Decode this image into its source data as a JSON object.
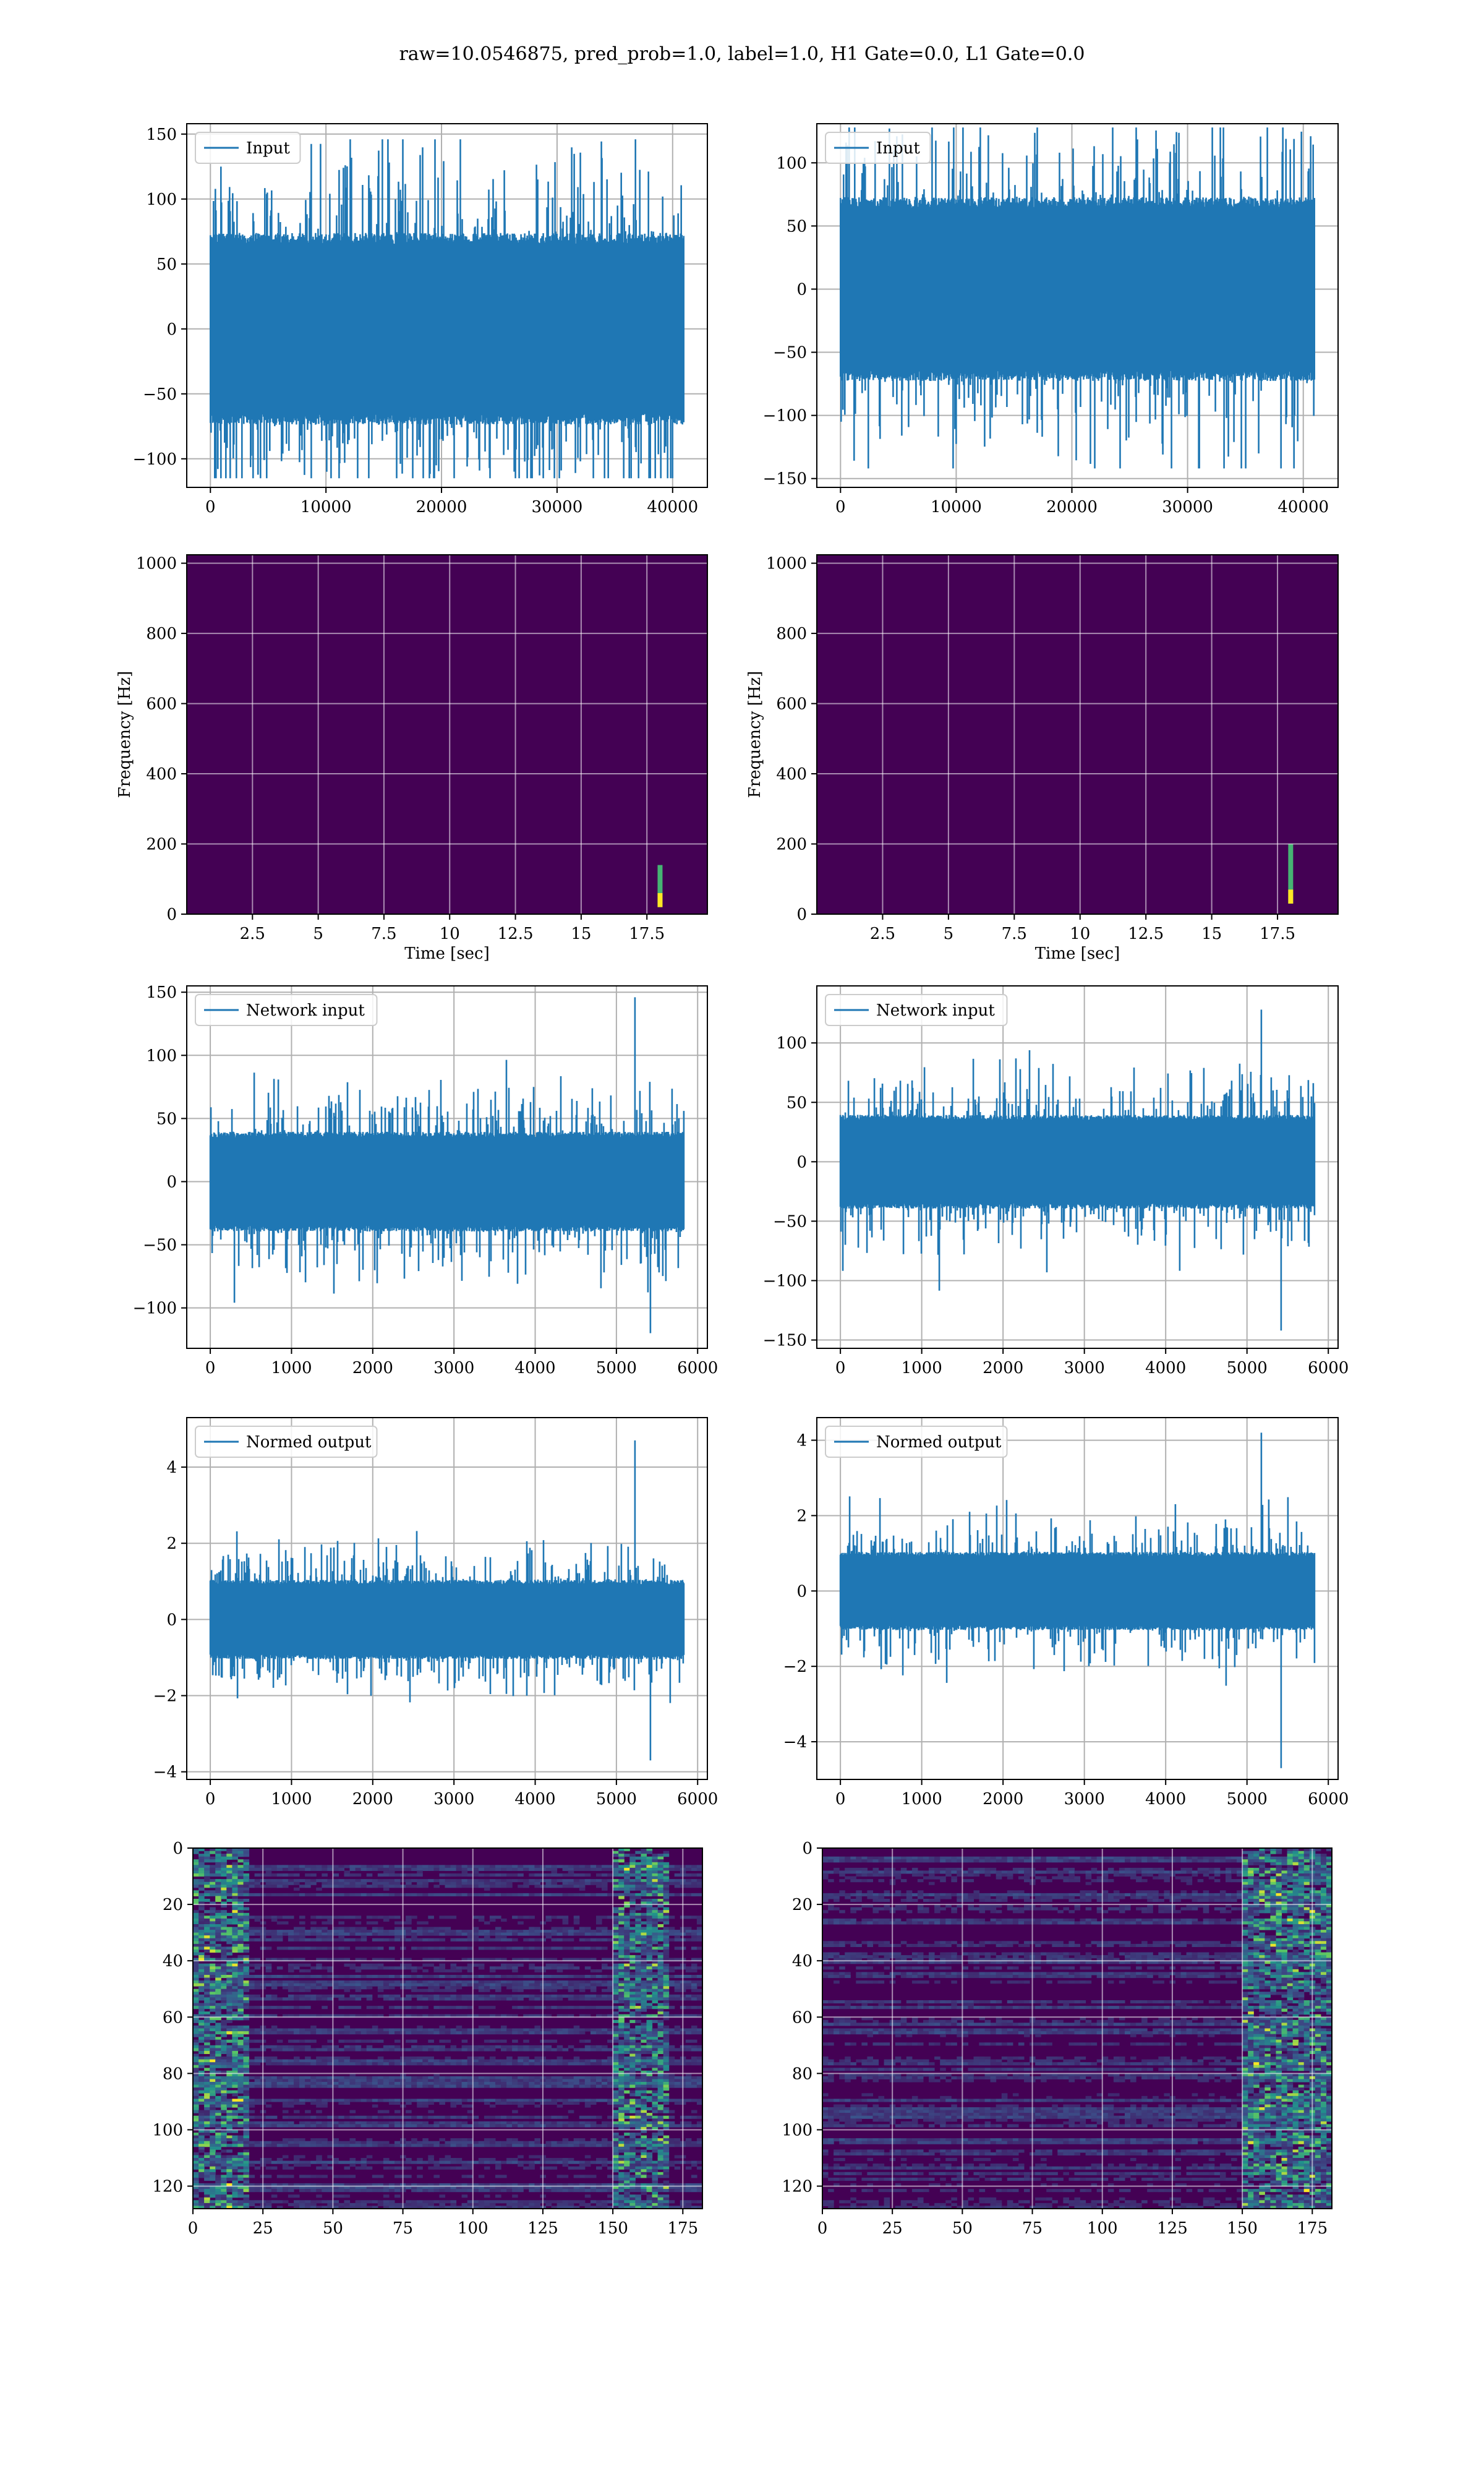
{
  "figure": {
    "title": "raw=10.0546875, pred_prob=1.0, label=1.0, H1 Gate=0.0, L1 Gate=0.0"
  },
  "colors": {
    "line": "#1f77b4",
    "grid": "#b0b0b0",
    "spectrogram_bg": "#440154",
    "spectrogram_mid": "#3b528b",
    "spectrogram_hi": "#21918c",
    "spectrogram_peak": "#fde725"
  },
  "chart_data": [
    {
      "id": "input_h1",
      "type": "line",
      "legend": "Input",
      "xlabel": "",
      "ylabel": "",
      "xlim": [
        -2048,
        43008
      ],
      "ylim": [
        -122,
        158
      ],
      "xticks": [
        0,
        10000,
        20000,
        30000,
        40000
      ],
      "yticks": [
        -100,
        -50,
        0,
        50,
        100,
        150
      ],
      "series": {
        "n": 40960,
        "band": [
          -72,
          70
        ],
        "peak_max": 146,
        "peak_max_at": 36800,
        "peak_min": -115
      }
    },
    {
      "id": "input_l1",
      "type": "line",
      "legend": "Input",
      "xlabel": "",
      "ylabel": "",
      "xlim": [
        -2048,
        43008
      ],
      "ylim": [
        -157,
        131
      ],
      "xticks": [
        0,
        10000,
        20000,
        30000,
        40000
      ],
      "yticks": [
        -150,
        -100,
        -50,
        0,
        50,
        100
      ],
      "series": {
        "n": 40960,
        "band": [
          -70,
          70
        ],
        "peak_max": 128,
        "peak_max_at": 36900,
        "peak_min": -142
      }
    },
    {
      "id": "spec_h1",
      "type": "heatmap",
      "xlabel": "Time [sec]",
      "ylabel": "Frequency [Hz]",
      "xlim": [
        0,
        19.8
      ],
      "ylim": [
        0,
        1024
      ],
      "xticks": [
        2.5,
        5.0,
        7.5,
        10.0,
        12.5,
        15.0,
        17.5
      ],
      "yticks": [
        0,
        200,
        400,
        600,
        800,
        1000
      ],
      "chirp": {
        "t": 18.0,
        "f_low": 20,
        "f_high": 140
      }
    },
    {
      "id": "spec_l1",
      "type": "heatmap",
      "xlabel": "Time [sec]",
      "ylabel": "Frequency [Hz]",
      "xlim": [
        0,
        19.8
      ],
      "ylim": [
        0,
        1024
      ],
      "xticks": [
        2.5,
        5.0,
        7.5,
        10.0,
        12.5,
        15.0,
        17.5
      ],
      "yticks": [
        0,
        200,
        400,
        600,
        800,
        1000
      ],
      "chirp": {
        "t": 18.0,
        "f_low": 30,
        "f_high": 200
      }
    },
    {
      "id": "net_h1",
      "type": "line",
      "legend": "Network input",
      "xlabel": "",
      "ylabel": "",
      "xlim": [
        -290,
        6120
      ],
      "ylim": [
        -132,
        155
      ],
      "xticks": [
        0,
        1000,
        2000,
        3000,
        4000,
        5000,
        6000
      ],
      "yticks": [
        -100,
        -50,
        0,
        50,
        100,
        150
      ],
      "series": {
        "n": 5830,
        "band": [
          -38,
          38
        ],
        "peak_max": 146,
        "peak_max_at": 5230,
        "peak_min": -120
      }
    },
    {
      "id": "net_l1",
      "type": "line",
      "legend": "Network input",
      "xlabel": "",
      "ylabel": "",
      "xlim": [
        -290,
        6120
      ],
      "ylim": [
        -157,
        148
      ],
      "xticks": [
        0,
        1000,
        2000,
        3000,
        4000,
        5000,
        6000
      ],
      "yticks": [
        -150,
        -100,
        -50,
        0,
        50,
        100
      ],
      "series": {
        "n": 5830,
        "band": [
          -38,
          38
        ],
        "peak_max": 128,
        "peak_max_at": 5180,
        "peak_min": -142
      }
    },
    {
      "id": "normed_h1",
      "type": "line",
      "legend": "Normed output",
      "xlabel": "",
      "ylabel": "",
      "xlim": [
        -290,
        6120
      ],
      "ylim": [
        -4.2,
        5.3
      ],
      "xticks": [
        0,
        1000,
        2000,
        3000,
        4000,
        5000,
        6000
      ],
      "yticks": [
        -4,
        -2,
        0,
        2,
        4
      ],
      "series": {
        "n": 5830,
        "band": [
          -1.0,
          1.0
        ],
        "peak_max": 4.7,
        "peak_max_at": 5230,
        "peak_min": -3.7
      }
    },
    {
      "id": "normed_l1",
      "type": "line",
      "legend": "Normed output",
      "xlabel": "",
      "ylabel": "",
      "xlim": [
        -290,
        6120
      ],
      "ylim": [
        -5.0,
        4.6
      ],
      "xticks": [
        0,
        1000,
        2000,
        3000,
        4000,
        5000,
        6000
      ],
      "yticks": [
        -4,
        -2,
        0,
        2,
        4
      ],
      "series": {
        "n": 5830,
        "band": [
          -1.0,
          1.0
        ],
        "peak_max": 4.2,
        "peak_max_at": 5180,
        "peak_min": -4.7
      }
    },
    {
      "id": "features_h1",
      "type": "heatmap",
      "xlabel": "",
      "ylabel": "",
      "xlim": [
        0,
        182
      ],
      "ylim": [
        128,
        0
      ],
      "xticks": [
        0,
        25,
        50,
        75,
        100,
        125,
        150,
        175
      ],
      "yticks": [
        0,
        20,
        40,
        60,
        80,
        100,
        120
      ],
      "hot_columns": [
        [
          0,
          20
        ],
        [
          150,
          170
        ]
      ]
    },
    {
      "id": "features_l1",
      "type": "heatmap",
      "xlabel": "",
      "ylabel": "",
      "xlim": [
        0,
        182
      ],
      "ylim": [
        128,
        0
      ],
      "xticks": [
        0,
        25,
        50,
        75,
        100,
        125,
        150,
        175
      ],
      "yticks": [
        0,
        20,
        40,
        60,
        80,
        100,
        120
      ],
      "hot_columns": [
        [
          150,
          182
        ]
      ]
    }
  ]
}
